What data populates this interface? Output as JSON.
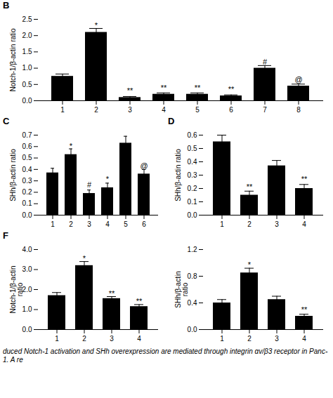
{
  "chart_data": [
    {
      "type": "bar",
      "title": "B",
      "categories": [
        1,
        2,
        3,
        4,
        5,
        6,
        7,
        8
      ],
      "values": [
        0.75,
        2.1,
        0.1,
        0.2,
        0.2,
        0.15,
        1.0,
        0.45
      ],
      "errors": [
        0.07,
        0.12,
        0.03,
        0.04,
        0.04,
        0.03,
        0.08,
        0.06
      ],
      "color": "#000000",
      "ylabel": "Notch-1/β-actin ratio",
      "ylim": [
        0.0,
        2.5
      ],
      "yticks": [
        {
          "value": 0,
          "label": "0.0"
        },
        0.5,
        {
          "value": 1,
          "label": "1.0"
        },
        1.5,
        {
          "value": 2,
          "label": "2.0"
        },
        2.5
      ],
      "annotations": [
        {
          "text": "*",
          "x": 2,
          "y": 2.22
        },
        {
          "text": "**",
          "x": 3,
          "y": 0.22
        },
        {
          "text": "**",
          "x": 4,
          "y": 0.32
        },
        {
          "text": "**",
          "x": 5,
          "y": 0.32
        },
        {
          "text": "**",
          "x": 6,
          "y": 0.27
        },
        {
          "text": "#",
          "x": 7,
          "y": 1.12
        },
        {
          "text": "@",
          "x": 8,
          "y": 0.57
        }
      ]
    },
    {
      "type": "bar",
      "title": "C",
      "categories": [
        1,
        2,
        3,
        4,
        5,
        6
      ],
      "values": [
        0.37,
        0.53,
        0.19,
        0.24,
        0.63,
        0.36
      ],
      "errors": [
        0.04,
        0.05,
        0.03,
        0.04,
        0.06,
        0.04
      ],
      "color": "#000000",
      "ylabel": "SHh/β-actin ratio",
      "ylim": [
        0.0,
        0.7
      ],
      "yticks": [
        {
          "value": 0,
          "label": "0.0"
        },
        0.1,
        0.2,
        0.3,
        0.4,
        0.5,
        0.6,
        0.7
      ],
      "annotations": [
        {
          "text": "*",
          "x": 2,
          "y": 0.58
        },
        {
          "text": "#",
          "x": 3,
          "y": 0.24
        },
        {
          "text": "*",
          "x": 4,
          "y": 0.29
        },
        {
          "text": "@",
          "x": 6,
          "y": 0.41
        }
      ]
    },
    {
      "type": "bar",
      "title": "D",
      "categories": [
        1,
        2,
        3,
        4
      ],
      "values": [
        0.55,
        0.15,
        0.37,
        0.2
      ],
      "errors": [
        0.05,
        0.03,
        0.04,
        0.03
      ],
      "color": "#000000",
      "ylabel": "SHh/β-actin ratio",
      "ylim": [
        0.0,
        0.6
      ],
      "yticks": [
        {
          "value": 0,
          "label": "0.0"
        },
        0.1,
        0.2,
        0.3,
        0.4,
        0.5,
        0.6
      ],
      "annotations": [
        {
          "text": "**",
          "x": 2,
          "y": 0.19
        },
        {
          "text": "**",
          "x": 4,
          "y": 0.25
        }
      ]
    },
    {
      "type": "bar",
      "title": "F",
      "categories": [
        1,
        2,
        3,
        4
      ],
      "values": [
        1.7,
        3.2,
        1.55,
        1.15
      ],
      "errors": [
        0.15,
        0.2,
        0.1,
        0.1
      ],
      "color": "#000000",
      "ylabel": "Notch-1/β-actin\nratio",
      "ylim": [
        0.0,
        4.0
      ],
      "yticks": [
        {
          "value": 0,
          "label": "0.0"
        },
        {
          "value": 1,
          "label": "1.0"
        },
        {
          "value": 2,
          "label": "2.0"
        },
        {
          "value": 3,
          "label": "3.0"
        },
        {
          "value": 4,
          "label": "4.0"
        }
      ],
      "annotations": [
        {
          "text": "*",
          "x": 2,
          "y": 3.42
        },
        {
          "text": "**",
          "x": 3,
          "y": 1.67
        },
        {
          "text": "**",
          "x": 4,
          "y": 1.27
        }
      ]
    },
    {
      "type": "bar",
      "categories": [
        1,
        2,
        3,
        4
      ],
      "values": [
        0.4,
        0.85,
        0.45,
        0.2
      ],
      "errors": [
        0.05,
        0.07,
        0.05,
        0.03
      ],
      "color": "#000000",
      "ylabel": "SHh/β-actin\nratio",
      "ylim": [
        0.0,
        1.2
      ],
      "yticks": [
        {
          "value": 0,
          "label": "0.0"
        },
        0.4,
        0.8,
        1.2
      ],
      "annotations": [
        {
          "text": "*",
          "x": 2,
          "y": 0.93
        },
        {
          "text": "**",
          "x": 4,
          "y": 0.26
        }
      ],
      "caption": "duced Notch-1 activation and SHh overexpression are mediated through integrin αv/β3 receptor in Panc-1. A re"
    }
  ]
}
